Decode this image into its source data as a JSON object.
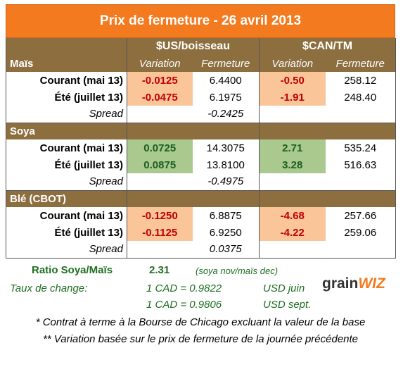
{
  "title": "Prix de fermeture - 26 avril 2013",
  "header": {
    "group_us": "$US/boisseau",
    "group_can": "$CAN/TM",
    "col_variation": "Variation",
    "col_fermeture": "Fermeture"
  },
  "sections": [
    {
      "name": "Maïs",
      "rows": [
        {
          "label": "Courant (mai 13)",
          "us_var": "-0.0125",
          "us_close": "6.4400",
          "can_var": "-0.50",
          "can_close": "258.12"
        },
        {
          "label": "Été (juillet 13)",
          "us_var": "-0.0475",
          "us_close": "6.1975",
          "can_var": "-1.91",
          "can_close": "248.40"
        }
      ],
      "spread_label": "Spread",
      "spread": "-0.2425"
    },
    {
      "name": "Soya",
      "rows": [
        {
          "label": "Courant (mai 13)",
          "us_var": "0.0725",
          "us_close": "14.3075",
          "can_var": "2.71",
          "can_close": "535.24"
        },
        {
          "label": "Été (juillet 13)",
          "us_var": "0.0875",
          "us_close": "13.8100",
          "can_var": "3.28",
          "can_close": "516.63"
        }
      ],
      "spread_label": "Spread",
      "spread": "-0.4975"
    },
    {
      "name": "Blé (CBOT)",
      "rows": [
        {
          "label": "Courant (mai 13)",
          "us_var": "-0.1250",
          "us_close": "6.8875",
          "can_var": "-4.68",
          "can_close": "257.66"
        },
        {
          "label": "Été (juillet 13)",
          "us_var": "-0.1125",
          "us_close": "6.9250",
          "can_var": "-4.22",
          "can_close": "259.06"
        }
      ],
      "spread_label": "Spread",
      "spread": "0.0375"
    }
  ],
  "footer": {
    "ratio_label": "Ratio Soya/Maïs",
    "ratio_value": "2.31",
    "ratio_note": "(soya nov/maïs dec)",
    "exchange_label": "Taux de change:",
    "rate1": "1 CAD =  0.9822",
    "rate1_unit": "USD juin",
    "rate2": "1 CAD =  0.9806",
    "rate2_unit": "USD sept.",
    "logo_a": "grain",
    "logo_b": "WIZ",
    "note1": "* Contrat à terme à la Bourse de Chicago excluant la valeur de la base",
    "note2": "** Variation basée sur le prix de fermeture de la journée précédente"
  },
  "colors": {
    "header_bg": "#8c6e3f",
    "title_bg": "#f47a1f",
    "negative_bg": "#fbc59a",
    "negative_text": "#c00000",
    "positive_bg": "#a9c98e",
    "positive_text": "#1c5e20",
    "footer_text": "#1f6e22"
  }
}
